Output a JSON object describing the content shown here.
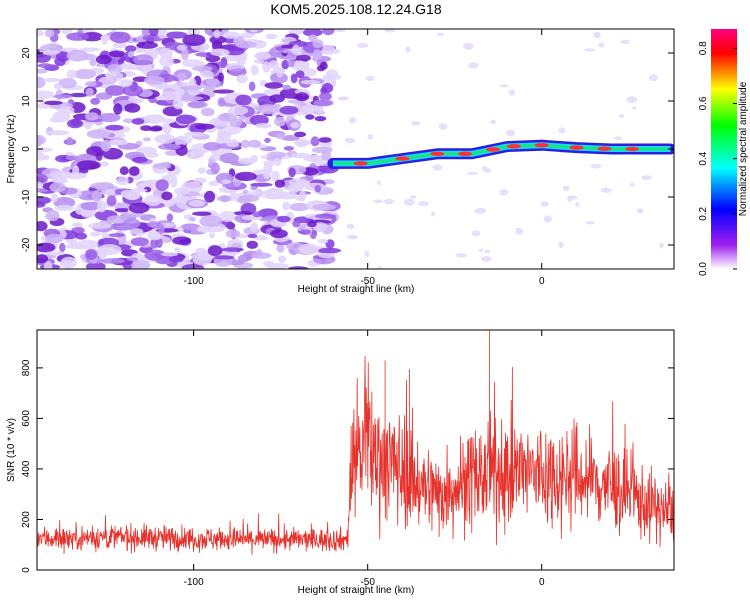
{
  "title": "KOM5.2025.108.12.24.G18",
  "chart_data": [
    {
      "type": "heatmap",
      "xlabel": "Height of straight line (km)",
      "ylabel": "Frequency (Hz)",
      "xlim": [
        -145,
        38
      ],
      "ylim": [
        -25,
        25
      ],
      "x_ticks": [
        -100,
        -50,
        0
      ],
      "y_ticks": [
        -20,
        -10,
        0,
        10,
        20
      ],
      "colorbar": {
        "label": "Normalized spectral amplitude",
        "range": [
          0,
          0.87
        ],
        "ticks": [
          0.0,
          0.2,
          0.4,
          0.6,
          0.8
        ],
        "colors": [
          "#ffffff",
          "#a020f0",
          "#0000ff",
          "#00ffff",
          "#00ff00",
          "#ffff00",
          "#ff0000",
          "#ff0080"
        ]
      },
      "signal_onset_km": -60,
      "signal_track": {
        "x": [
          -60,
          -50,
          -40,
          -30,
          -20,
          -10,
          0,
          10,
          20,
          30,
          37
        ],
        "y": [
          -3,
          -3,
          -2,
          -1,
          -1,
          0.5,
          0.8,
          0.3,
          0,
          0,
          0
        ]
      }
    },
    {
      "type": "line",
      "xlabel": "Height of straight line (km)",
      "ylabel": "SNR (10 * v/v)",
      "xlim": [
        -145,
        38
      ],
      "ylim": [
        0,
        950
      ],
      "x_ticks": [
        -100,
        -50,
        0
      ],
      "y_ticks": [
        0,
        200,
        400,
        600,
        800
      ],
      "line_color": "#e8302a",
      "series": [
        {
          "x": [
            -145,
            -120,
            -100,
            -80,
            -65,
            -56,
            -54,
            -50,
            -45,
            -40,
            -35,
            -30,
            -20,
            -10,
            0,
            10,
            20,
            30,
            38
          ],
          "y": [
            125,
            130,
            125,
            120,
            120,
            120,
            470,
            480,
            430,
            400,
            340,
            300,
            360,
            390,
            380,
            370,
            330,
            260,
            220
          ]
        }
      ],
      "peaks": [
        {
          "x": -15,
          "y": 1000
        },
        {
          "x": -53,
          "y": 760
        },
        {
          "x": -45,
          "y": 830
        },
        {
          "x": -38,
          "y": 795
        }
      ]
    }
  ]
}
